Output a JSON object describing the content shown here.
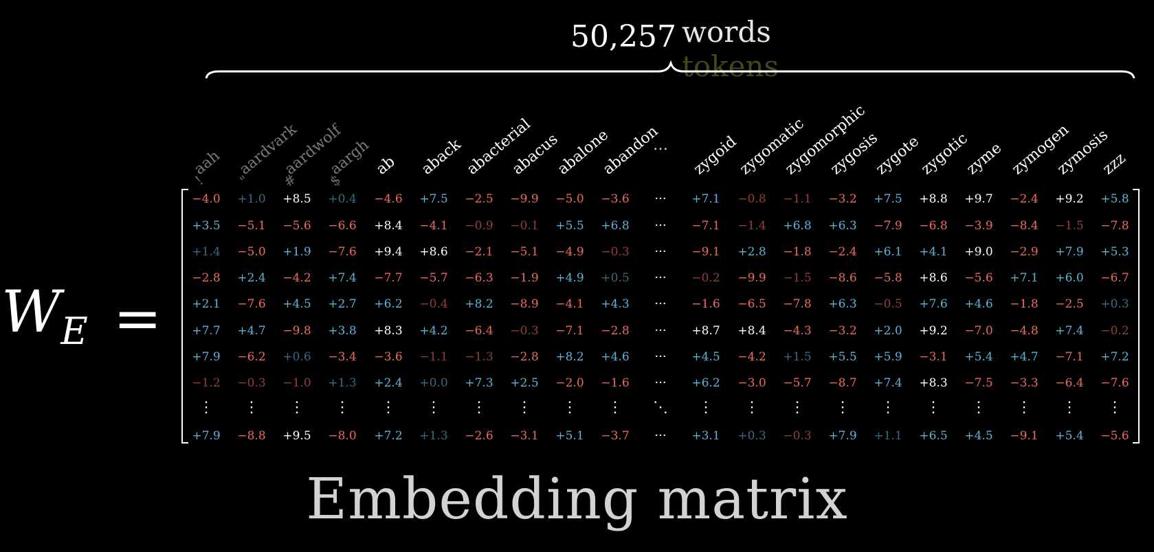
{
  "header": {
    "count": "50,257",
    "unit_primary": "words",
    "unit_secondary": "tokens"
  },
  "symbol": {
    "base": "W",
    "subscript": "E",
    "equals": "="
  },
  "title": "Embedding matrix",
  "vdots": "⋮",
  "hdots": "···",
  "ddots": "⋱",
  "colors": {
    "positive": "#5fb3d9",
    "negative": "#ef6a5e",
    "white": "#ffffff"
  },
  "columns": [
    {
      "word": "aah",
      "char": "!",
      "faded": true
    },
    {
      "word": "aardvark",
      "char": "\"",
      "faded": true
    },
    {
      "word": "aardwolf",
      "char": "#",
      "faded": true
    },
    {
      "word": "aargh",
      "char": "$",
      "faded": true
    },
    {
      "word": "ab"
    },
    {
      "word": "aback"
    },
    {
      "word": "abacterial"
    },
    {
      "word": "abacus"
    },
    {
      "word": "abalone"
    },
    {
      "word": "abandon"
    },
    {
      "word": "…",
      "ellipsis": true
    },
    {
      "word": "zygoid"
    },
    {
      "word": "zygomatic"
    },
    {
      "word": "zygomorphic"
    },
    {
      "word": "zygosis"
    },
    {
      "word": "zygote"
    },
    {
      "word": "zygotic"
    },
    {
      "word": "zyme"
    },
    {
      "word": "zymogen"
    },
    {
      "word": "zymosis"
    },
    {
      "word": "zzz"
    }
  ],
  "rows": [
    [
      "-4.0",
      "+1.0",
      "+8.5",
      "+0.4",
      "-4.6",
      "+7.5",
      "-2.5",
      "-9.9",
      "-5.0",
      "-3.6",
      "+7.1",
      "-0.8",
      "-1.1",
      "-3.2",
      "+7.5",
      "+8.8",
      "+9.7",
      "-2.4",
      "+9.2",
      "+5.8"
    ],
    [
      "+3.5",
      "-5.1",
      "-5.6",
      "-6.6",
      "+8.4",
      "-4.1",
      "-0.9",
      "-0.1",
      "+5.5",
      "+6.8",
      "-7.1",
      "-1.4",
      "+6.8",
      "+6.3",
      "-7.9",
      "-6.8",
      "-3.9",
      "-8.4",
      "-1.5",
      "-7.8"
    ],
    [
      "+1.4",
      "-5.0",
      "+1.9",
      "-7.6",
      "+9.4",
      "+8.6",
      "-2.1",
      "-5.1",
      "-4.9",
      "-0.3",
      "-9.1",
      "+2.8",
      "-1.8",
      "-2.4",
      "+6.1",
      "+4.1",
      "+9.0",
      "-2.9",
      "+7.9",
      "+5.3"
    ],
    [
      "-2.8",
      "+2.4",
      "-4.2",
      "+7.4",
      "-7.7",
      "-5.7",
      "-6.3",
      "-1.9",
      "+4.9",
      "+0.5",
      "-0.2",
      "-9.9",
      "-1.5",
      "-8.6",
      "-5.8",
      "+8.6",
      "-5.6",
      "+7.1",
      "+6.0",
      "-6.7"
    ],
    [
      "+2.1",
      "-7.6",
      "+4.5",
      "+2.7",
      "+6.2",
      "-0.4",
      "+8.2",
      "-8.9",
      "-4.1",
      "+4.3",
      "-1.6",
      "-6.5",
      "-7.8",
      "+6.3",
      "-0.5",
      "+7.6",
      "+4.6",
      "-1.8",
      "-2.5",
      "+0.3"
    ],
    [
      "+7.7",
      "+4.7",
      "-9.8",
      "+3.8",
      "+8.3",
      "+4.2",
      "-6.4",
      "-0.3",
      "-7.1",
      "-2.8",
      "+8.7",
      "+8.4",
      "-4.3",
      "-3.2",
      "+2.0",
      "+9.2",
      "-7.0",
      "-4.8",
      "+7.4",
      "-0.2"
    ],
    [
      "+7.9",
      "-6.2",
      "+0.6",
      "-3.4",
      "-3.6",
      "-1.1",
      "-1.3",
      "-2.8",
      "+8.2",
      "+4.6",
      "+4.5",
      "-4.2",
      "+1.5",
      "+5.5",
      "+5.9",
      "-3.1",
      "+5.4",
      "+4.7",
      "-7.1",
      "+7.2"
    ],
    [
      "-1.2",
      "-0.3",
      "-1.0",
      "+1.3",
      "+2.4",
      "+0.0",
      "+7.3",
      "+2.5",
      "-2.0",
      "-1.6",
      "+6.2",
      "-3.0",
      "-5.7",
      "-8.7",
      "+7.4",
      "+8.3",
      "-7.5",
      "-3.3",
      "-6.4",
      "-7.6"
    ]
  ],
  "last_row": [
    "+7.9",
    "-8.8",
    "+9.5",
    "-8.0",
    "+7.2",
    "+1.3",
    "-2.6",
    "-3.1",
    "+5.1",
    "-3.7",
    "+3.1",
    "+0.3",
    "-0.3",
    "+7.9",
    "+1.1",
    "+6.5",
    "+4.5",
    "-9.1",
    "+5.4",
    "-5.6"
  ]
}
